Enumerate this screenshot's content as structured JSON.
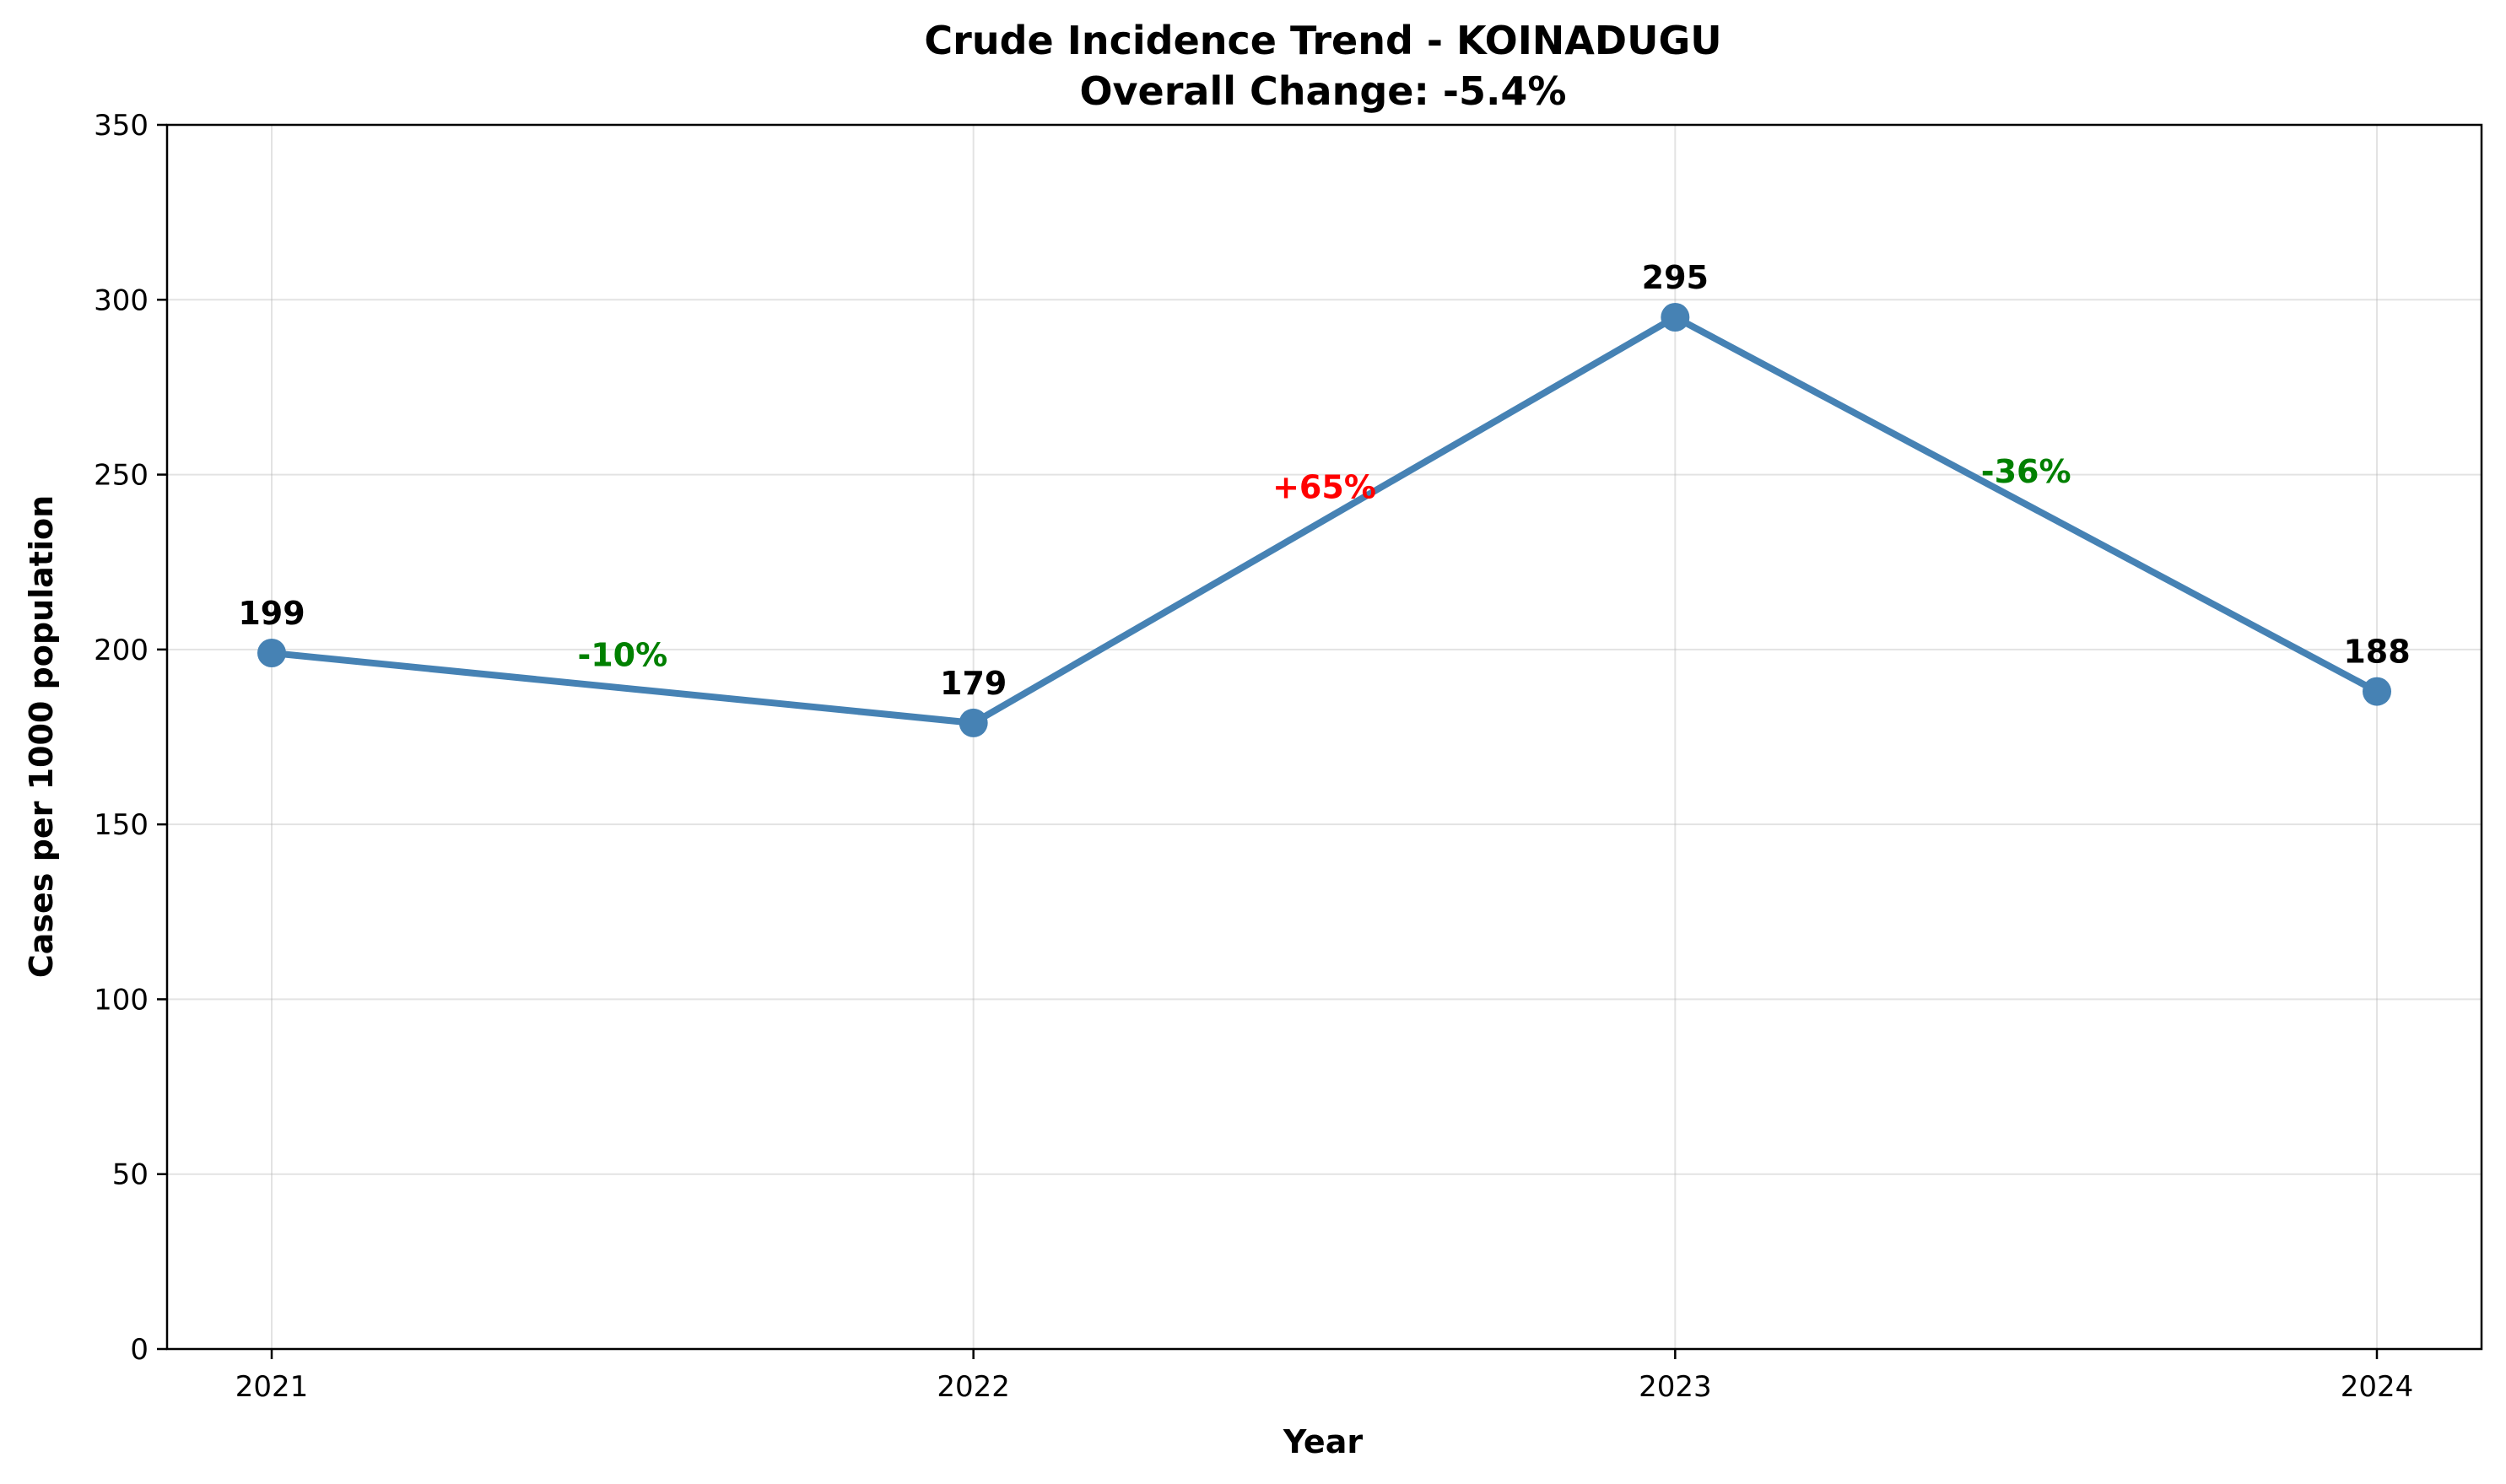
{
  "chart_data": {
    "type": "line",
    "title": "Crude Incidence Trend - KOINADUGU",
    "subtitle": "Overall Change: -5.4%",
    "xlabel": "Year",
    "ylabel": "Cases per 1000 population",
    "categories": [
      "2021",
      "2022",
      "2023",
      "2024"
    ],
    "series": [
      {
        "values": [
          199,
          179,
          295,
          188
        ],
        "color": "#4682b4"
      }
    ],
    "point_labels": [
      "199",
      "179",
      "295",
      "188"
    ],
    "changes": [
      {
        "label": "-10%",
        "color": "#008000"
      },
      {
        "label": "+65%",
        "color": "#ff0000"
      },
      {
        "label": "-36%",
        "color": "#008000"
      }
    ],
    "ylim": [
      0,
      350
    ],
    "yticks": [
      "0",
      "50",
      "100",
      "150",
      "200",
      "250",
      "300",
      "350"
    ],
    "grid": true
  }
}
